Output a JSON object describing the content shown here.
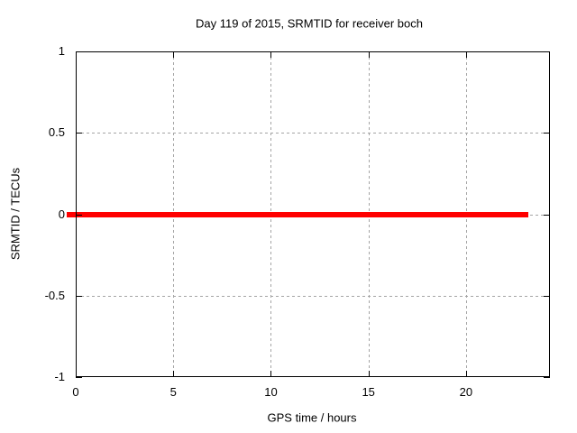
{
  "chart_data": {
    "type": "line",
    "title": "Day 119 of 2015, SRMTID for receiver boch",
    "xlabel": "GPS time / hours",
    "ylabel": "SRMTID / TECUs",
    "xlim": [
      0,
      24.3
    ],
    "ylim": [
      -1,
      1
    ],
    "xticks": [
      0,
      5,
      10,
      15,
      20
    ],
    "yticks": [
      -1,
      -0.5,
      0,
      0.5,
      1
    ],
    "grid": true,
    "legend": "none",
    "series": [
      {
        "name": "SRMTID",
        "color": "#ff0000",
        "line_width": 6,
        "points": [
          {
            "x": -0.46,
            "y": 0
          },
          {
            "x": 23.2,
            "y": 0
          }
        ]
      }
    ],
    "colors": {
      "background": "#ffffff",
      "border": "#000000",
      "grid": "#a4a4a4",
      "text": "#000000"
    }
  }
}
